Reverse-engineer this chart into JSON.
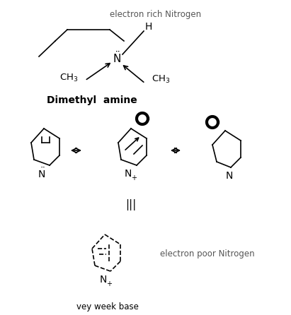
{
  "bg_color": "#ffffff",
  "text_color": "#000000",
  "electron_rich_label": "electron rich Nitrogen",
  "dimethylamine_label": "Dimethyl  amine",
  "iii_label": "|||",
  "electron_poor_label": "electron poor Nitrogen",
  "very_weak_label": "vey week base"
}
